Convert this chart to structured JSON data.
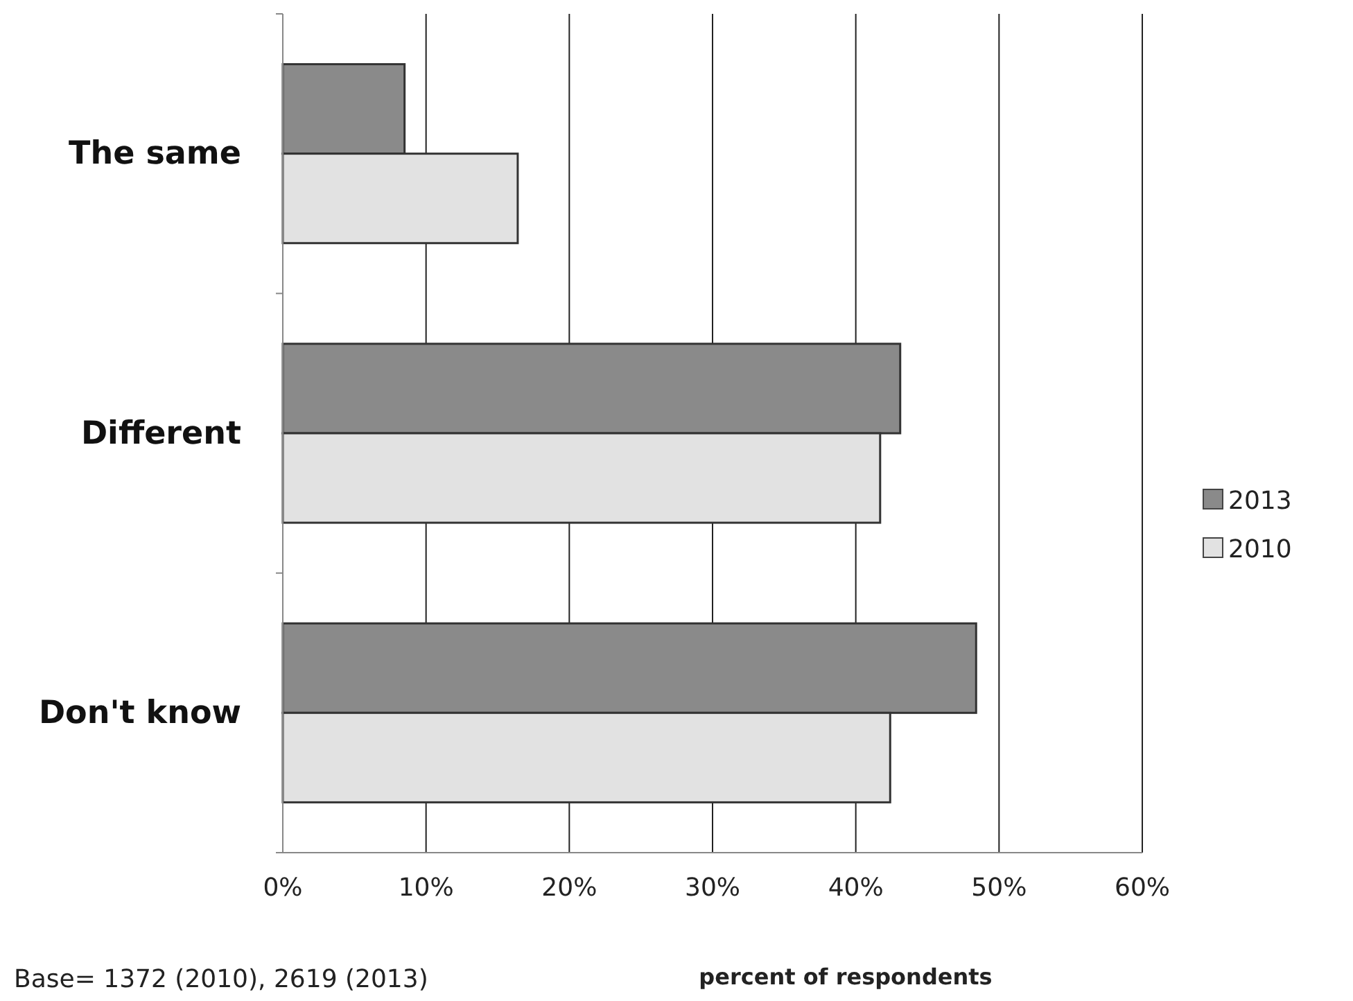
{
  "chart_data": {
    "type": "bar",
    "orientation": "horizontal",
    "categories": [
      "The same",
      "Different",
      "Don't know"
    ],
    "series": [
      {
        "name": "2013",
        "color": "#8a8a8a",
        "values": [
          8.5,
          43.1,
          48.4
        ]
      },
      {
        "name": "2010",
        "color": "#e2e2e2",
        "values": [
          16.4,
          41.7,
          42.4
        ]
      }
    ],
    "xlim": [
      0,
      60
    ],
    "xticks": [
      {
        "value": 0,
        "label": "0%"
      },
      {
        "value": 10,
        "label": "10%"
      },
      {
        "value": 20,
        "label": "20%"
      },
      {
        "value": 30,
        "label": "30%"
      },
      {
        "value": 40,
        "label": "40%"
      },
      {
        "value": 50,
        "label": "50%"
      },
      {
        "value": 60,
        "label": "60%"
      }
    ],
    "xlabel": "percent of respondents",
    "annotations": [
      "Base= 1372 (2010), 2619 (2013)"
    ],
    "grid": "x",
    "legend": "right"
  }
}
